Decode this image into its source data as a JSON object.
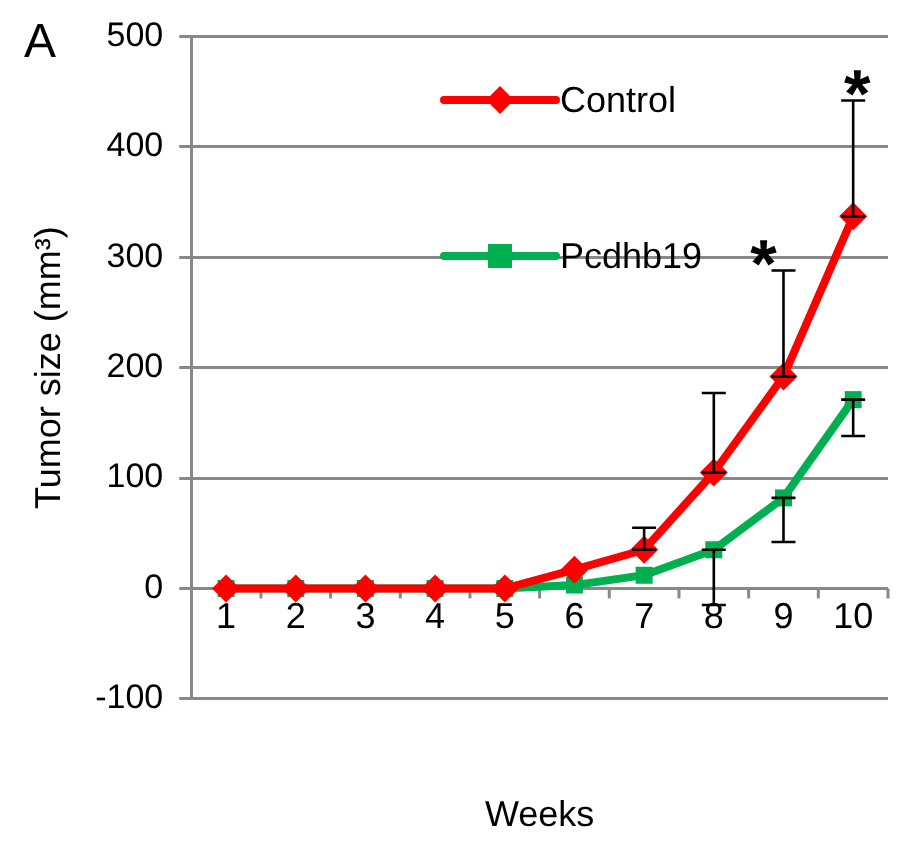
{
  "chart_data": {
    "type": "line",
    "xlabel": "Weeks",
    "ylabel": "Tumor size (mm³)",
    "categories": [
      "1",
      "2",
      "3",
      "4",
      "5",
      "6",
      "7",
      "8",
      "9",
      "10"
    ],
    "series": [
      {
        "name": "Control",
        "color": "#ff0000",
        "marker": "diamond",
        "values": [
          0,
          0,
          0,
          0,
          0,
          17,
          35,
          105,
          192,
          337
        ],
        "errors": [
          null,
          null,
          null,
          null,
          null,
          null,
          [
            35,
            55
          ],
          [
            105,
            177
          ],
          [
            192,
            288
          ],
          [
            337,
            442
          ]
        ]
      },
      {
        "name": "Pcdhb19",
        "color": "#00b050",
        "marker": "square",
        "values": [
          0,
          0,
          0,
          0,
          0,
          3,
          12,
          35,
          82,
          171
        ],
        "errors": [
          null,
          null,
          null,
          null,
          null,
          null,
          null,
          [
            -15,
            35
          ],
          [
            42,
            82
          ],
          [
            138,
            171
          ]
        ]
      }
    ],
    "ylim": [
      -100,
      500
    ],
    "yticks": [
      -100,
      0,
      100,
      200,
      300,
      400,
      500
    ],
    "grid": "y",
    "legend": "top",
    "annotations": [
      "A",
      {
        "text": "*",
        "x": "9",
        "y": 288
      },
      {
        "text": "*",
        "x": "10",
        "y": 442
      }
    ]
  }
}
